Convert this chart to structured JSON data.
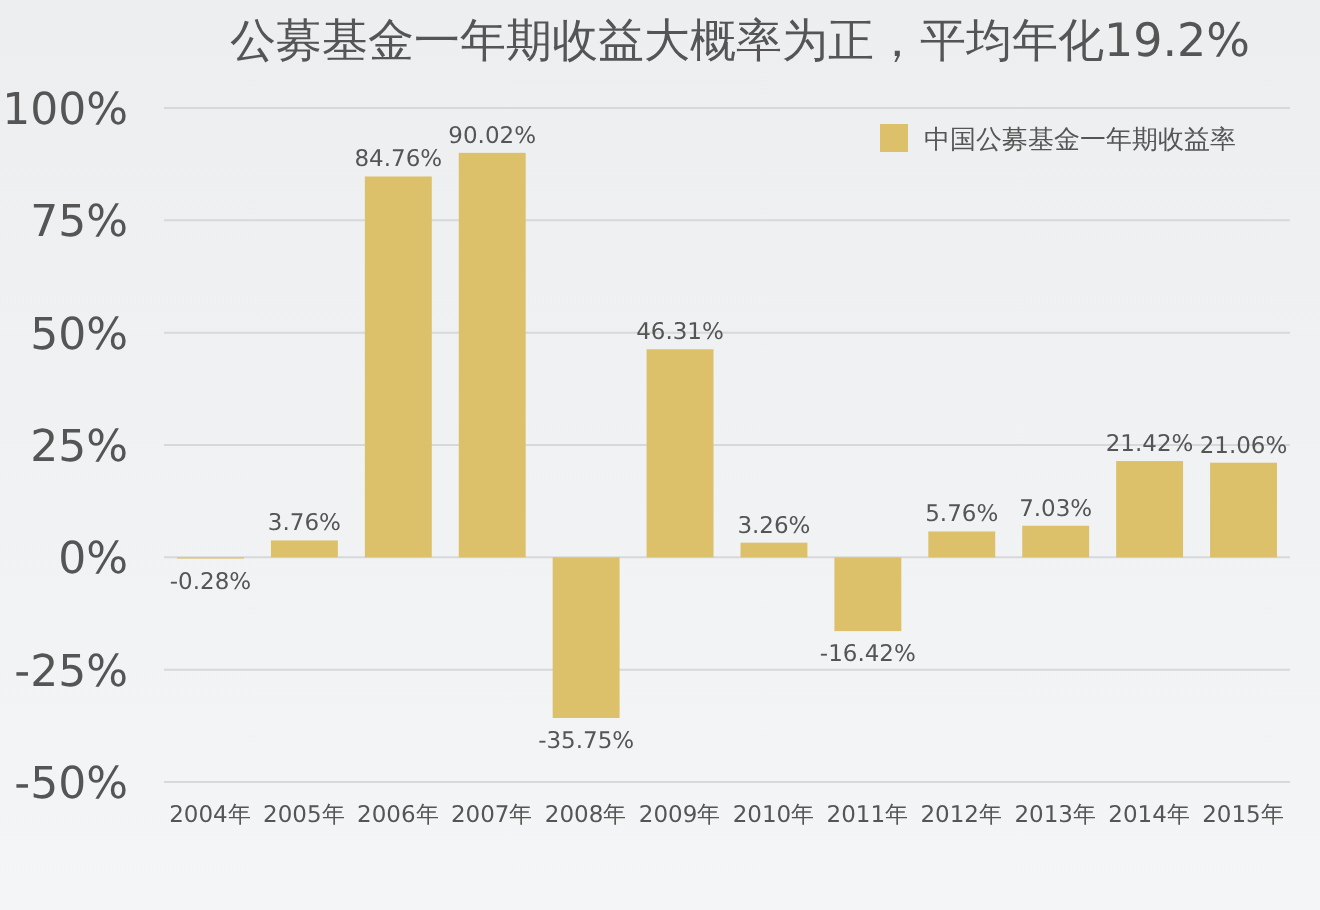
{
  "chart_data": {
    "type": "bar",
    "title": "公募基金一年期收益大概率为正，平均年化19.2%",
    "categories": [
      "2004年",
      "2005年",
      "2006年",
      "2007年",
      "2008年",
      "2009年",
      "2010年",
      "2011年",
      "2012年",
      "2013年",
      "2014年",
      "2015年"
    ],
    "series": [
      {
        "name": "中国公募基金一年期收益率",
        "color": "#dcc06a",
        "values": [
          -0.28,
          3.76,
          84.76,
          90.02,
          -35.75,
          46.31,
          3.26,
          -16.42,
          5.76,
          7.03,
          21.42,
          21.06
        ]
      }
    ],
    "value_labels": [
      "-0.28%",
      "3.76%",
      "84.76%",
      "90.02%",
      "-35.75%",
      "46.31%",
      "3.26%",
      "-16.42%",
      "5.76%",
      "7.03%",
      "21.42%",
      "21.06%"
    ],
    "ylim": [
      -50,
      100
    ],
    "yticks": [
      {
        "value": -50,
        "label": "-50%"
      },
      {
        "value": -25,
        "label": "-25%"
      },
      {
        "value": 0,
        "label": "0%"
      },
      {
        "value": 25,
        "label": "25%"
      },
      {
        "value": 50,
        "label": "50%"
      },
      {
        "value": 75,
        "label": "75%"
      },
      {
        "value": 100,
        "label": "100%"
      }
    ],
    "grid": "y",
    "legend": "top right"
  }
}
